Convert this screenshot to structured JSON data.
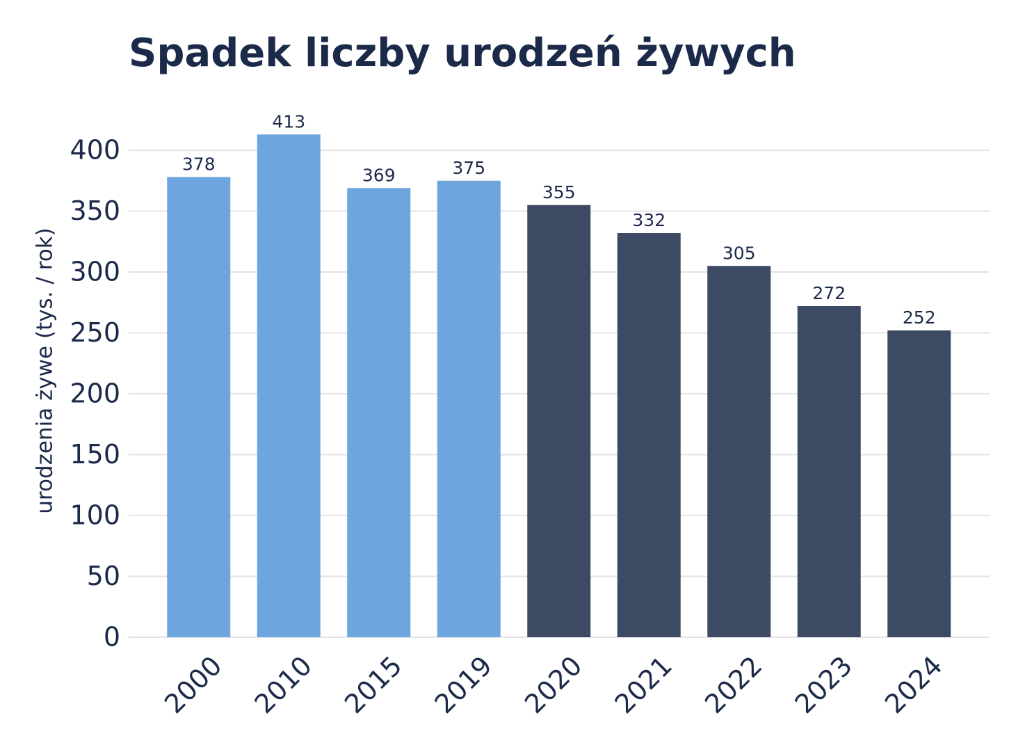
{
  "chart_data": {
    "type": "bar",
    "title": "Spadek liczby urodzeń żywych",
    "y_label": "urodzenia żywe (tys. / rok)",
    "categories": [
      "2000",
      "2010",
      "2015",
      "2019",
      "2020",
      "2021",
      "2022",
      "2023",
      "2024"
    ],
    "values": [
      378,
      413,
      369,
      375,
      355,
      332,
      305,
      272,
      252
    ],
    "colors": [
      "#6fa5de",
      "#6fa5de",
      "#6fa5de",
      "#6fa5de",
      "#3d4a63",
      "#3d4a63",
      "#3d4a63",
      "#3d4a63",
      "#3d4a63"
    ],
    "ylim": [
      0,
      430
    ],
    "yticks": [
      0,
      50,
      100,
      150,
      200,
      250,
      300,
      350,
      400
    ],
    "grid": true
  }
}
